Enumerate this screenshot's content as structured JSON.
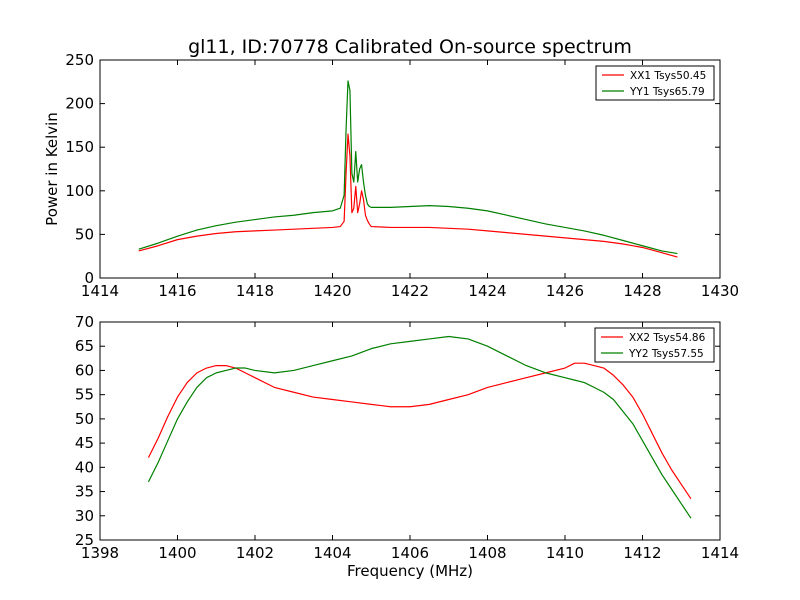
{
  "figure": {
    "title": "gl11, ID:70778 Calibrated On-source spectrum"
  },
  "chart_data": [
    {
      "type": "line",
      "title": "gl11, ID:70778 Calibrated On-source spectrum",
      "xlabel": "",
      "ylabel": "Power in Kelvin",
      "xlim": [
        1414,
        1430
      ],
      "ylim": [
        0,
        250
      ],
      "xticks": [
        1414,
        1416,
        1418,
        1420,
        1422,
        1424,
        1426,
        1428,
        1430
      ],
      "yticks": [
        0,
        50,
        100,
        150,
        200,
        250
      ],
      "grid": false,
      "legend_position": "top-right",
      "series": [
        {
          "name": "XX1 Tsys50.45",
          "color": "#ff0000",
          "x": [
            1415.0,
            1415.5,
            1416.0,
            1416.5,
            1417.0,
            1417.5,
            1418.0,
            1418.5,
            1419.0,
            1419.5,
            1420.0,
            1420.2,
            1420.3,
            1420.35,
            1420.4,
            1420.45,
            1420.5,
            1420.55,
            1420.6,
            1420.65,
            1420.7,
            1420.75,
            1420.8,
            1420.85,
            1420.9,
            1420.95,
            1421.0,
            1421.5,
            1422.0,
            1422.5,
            1423.0,
            1423.5,
            1424.0,
            1424.5,
            1425.0,
            1425.5,
            1426.0,
            1426.5,
            1427.0,
            1427.5,
            1428.0,
            1428.5,
            1428.9
          ],
          "y": [
            31,
            37,
            44,
            48,
            51,
            53,
            54,
            55,
            56,
            57,
            58,
            59,
            65,
            120,
            165,
            140,
            75,
            80,
            105,
            75,
            85,
            100,
            90,
            72,
            66,
            62,
            59,
            58,
            58,
            58,
            57,
            56,
            54,
            52,
            50,
            48,
            46,
            44,
            42,
            39,
            35,
            29,
            24
          ]
        },
        {
          "name": "YY1 Tsys65.79",
          "color": "#008000",
          "x": [
            1415.0,
            1415.5,
            1416.0,
            1416.5,
            1417.0,
            1417.5,
            1418.0,
            1418.5,
            1419.0,
            1419.5,
            1420.0,
            1420.2,
            1420.3,
            1420.35,
            1420.4,
            1420.45,
            1420.5,
            1420.55,
            1420.6,
            1420.65,
            1420.7,
            1420.75,
            1420.8,
            1420.85,
            1420.9,
            1420.95,
            1421.0,
            1421.5,
            1422.0,
            1422.5,
            1423.0,
            1423.5,
            1424.0,
            1424.5,
            1425.0,
            1425.5,
            1426.0,
            1426.5,
            1427.0,
            1427.5,
            1428.0,
            1428.5,
            1428.9
          ],
          "y": [
            33,
            40,
            48,
            55,
            60,
            64,
            67,
            70,
            72,
            75,
            77,
            80,
            95,
            170,
            226,
            215,
            120,
            110,
            145,
            110,
            125,
            130,
            110,
            95,
            85,
            82,
            81,
            81,
            82,
            83,
            82,
            80,
            77,
            72,
            67,
            62,
            58,
            54,
            49,
            43,
            37,
            31,
            28
          ]
        }
      ]
    },
    {
      "type": "line",
      "title": "",
      "xlabel": "Frequency (MHz)",
      "ylabel": "",
      "xlim": [
        1398,
        1414
      ],
      "ylim": [
        25,
        70
      ],
      "xticks": [
        1398,
        1400,
        1402,
        1404,
        1406,
        1408,
        1410,
        1412,
        1414
      ],
      "yticks": [
        25,
        30,
        35,
        40,
        45,
        50,
        55,
        60,
        65,
        70
      ],
      "grid": false,
      "legend_position": "top-right",
      "series": [
        {
          "name": "XX2 Tsys54.86",
          "color": "#ff0000",
          "x": [
            1399.25,
            1399.5,
            1399.75,
            1400.0,
            1400.25,
            1400.5,
            1400.75,
            1401.0,
            1401.25,
            1401.5,
            1401.75,
            1402.0,
            1402.5,
            1403.0,
            1403.5,
            1404.0,
            1404.5,
            1405.0,
            1405.5,
            1406.0,
            1406.5,
            1407.0,
            1407.5,
            1408.0,
            1408.5,
            1409.0,
            1409.5,
            1410.0,
            1410.25,
            1410.5,
            1410.75,
            1411.0,
            1411.25,
            1411.5,
            1411.75,
            1412.0,
            1412.25,
            1412.5,
            1412.75,
            1413.0,
            1413.25
          ],
          "y": [
            42,
            46,
            50.5,
            54.5,
            57.5,
            59.5,
            60.5,
            61,
            61,
            60.5,
            59.5,
            58.5,
            56.5,
            55.5,
            54.5,
            54,
            53.5,
            53,
            52.5,
            52.5,
            53,
            54,
            55,
            56.5,
            57.5,
            58.5,
            59.5,
            60.5,
            61.5,
            61.5,
            61,
            60.5,
            59,
            57,
            54.5,
            51,
            47,
            43,
            39.5,
            36.5,
            33.5
          ]
        },
        {
          "name": "YY2 Tsys57.55",
          "color": "#008000",
          "x": [
            1399.25,
            1399.5,
            1399.75,
            1400.0,
            1400.25,
            1400.5,
            1400.75,
            1401.0,
            1401.25,
            1401.5,
            1401.75,
            1402.0,
            1402.5,
            1403.0,
            1403.5,
            1404.0,
            1404.5,
            1405.0,
            1405.5,
            1406.0,
            1406.5,
            1407.0,
            1407.5,
            1408.0,
            1408.5,
            1409.0,
            1409.5,
            1410.0,
            1410.25,
            1410.5,
            1410.75,
            1411.0,
            1411.25,
            1411.5,
            1411.75,
            1412.0,
            1412.25,
            1412.5,
            1412.75,
            1413.0,
            1413.25
          ],
          "y": [
            37,
            41,
            45.5,
            50,
            53.5,
            56.5,
            58.5,
            59.5,
            60,
            60.5,
            60.5,
            60,
            59.5,
            60,
            61,
            62,
            63,
            64.5,
            65.5,
            66,
            66.5,
            67,
            66.5,
            65,
            63,
            61,
            59.5,
            58.5,
            58,
            57.5,
            56.5,
            55.5,
            54,
            51.5,
            49,
            45.5,
            42,
            38.5,
            35.5,
            32.5,
            29.5
          ]
        }
      ]
    }
  ]
}
